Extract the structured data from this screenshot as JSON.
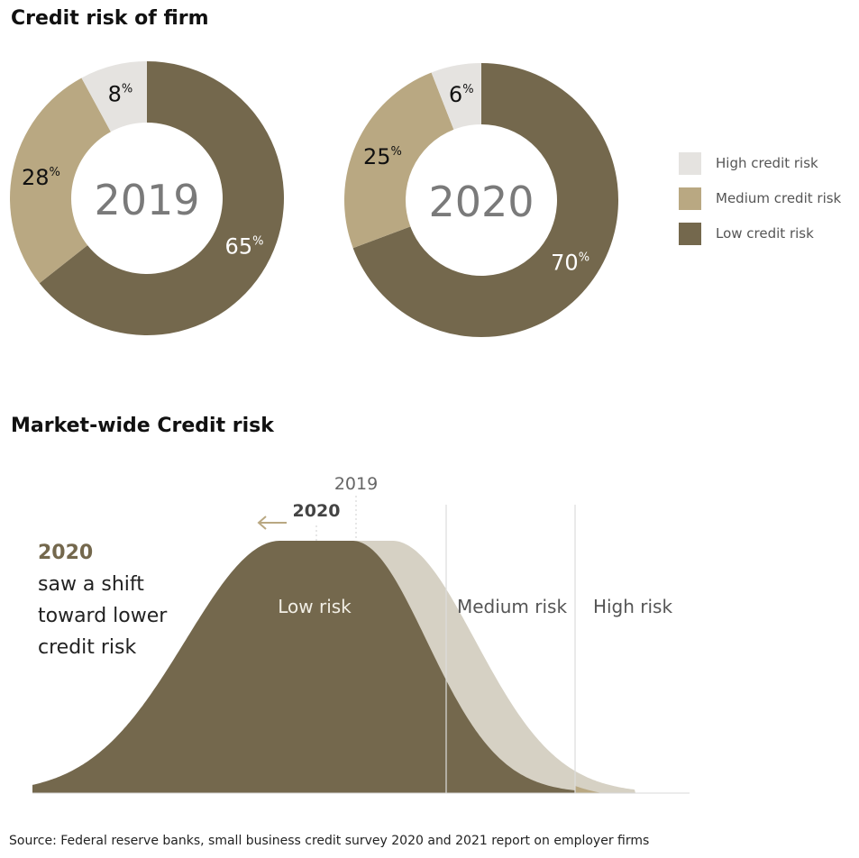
{
  "colors": {
    "high": "#e5e3e0",
    "medium": "#b9a882",
    "low": "#74684d",
    "curve_2019": "#d6d1c4",
    "arrow": "#b9a882",
    "year_text": "#7a7a7a",
    "annotation_year": "#74684d"
  },
  "header": {
    "title_top": "Credit risk of firm",
    "title_bottom": "Market-wide Credit risk"
  },
  "legend": [
    {
      "key": "high",
      "label": "High credit risk"
    },
    {
      "key": "medium",
      "label": "Medium credit risk"
    },
    {
      "key": "low",
      "label": "Low credit risk"
    }
  ],
  "chart_data": [
    {
      "type": "pie",
      "variant": "donut",
      "center_label": "2019",
      "unit": "%",
      "slices": [
        {
          "key": "high",
          "value": 8
        },
        {
          "key": "medium",
          "value": 28
        },
        {
          "key": "low",
          "value": 65
        }
      ]
    },
    {
      "type": "pie",
      "variant": "donut",
      "center_label": "2020",
      "unit": "%",
      "slices": [
        {
          "key": "high",
          "value": 6
        },
        {
          "key": "medium",
          "value": 25
        },
        {
          "key": "low",
          "value": 70
        }
      ]
    },
    {
      "type": "area",
      "title": "Market-wide Credit risk",
      "series": [
        {
          "name": "2019",
          "peak_label": "2019"
        },
        {
          "name": "2020",
          "peak_label": "2020"
        }
      ],
      "regions": [
        "Low risk",
        "Medium risk",
        "High risk"
      ],
      "annotation": {
        "year": "2020",
        "lines": [
          "saw a shift",
          "toward lower",
          "credit risk"
        ]
      }
    }
  ],
  "footer": {
    "source": "Source: Federal reserve banks, small business credit survey 2020 and 2021 report on employer firms"
  }
}
